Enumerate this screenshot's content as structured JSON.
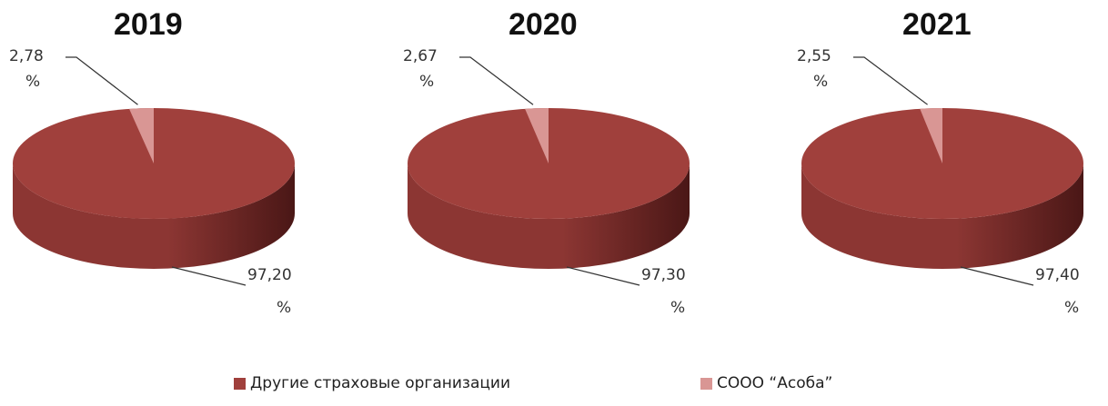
{
  "chart_data": [
    {
      "type": "pie",
      "title": "2019",
      "categories": [
        "Другие страховые организации",
        "СООО \"Асоба\""
      ],
      "values": [
        97.2,
        2.78
      ],
      "data_labels": [
        [
          "97,20",
          "%"
        ],
        [
          "2,78",
          "%"
        ]
      ]
    },
    {
      "type": "pie",
      "title": "2020",
      "categories": [
        "Другие страховые организации",
        "СООО \"Асоба\""
      ],
      "values": [
        97.3,
        2.67
      ],
      "data_labels": [
        [
          "97,30",
          "%"
        ],
        [
          "2,67",
          "%"
        ]
      ]
    },
    {
      "type": "pie",
      "title": "2021",
      "categories": [
        "Другие страховые организации",
        "СООО \"Асоба\""
      ],
      "values": [
        97.4,
        2.55
      ],
      "data_labels": [
        [
          "97,40",
          "%"
        ],
        [
          "2,55",
          "%"
        ]
      ]
    }
  ],
  "legend": {
    "position": "bottom",
    "items": [
      {
        "label": "Другие страховые организации",
        "color": "#A0403C"
      },
      {
        "label": "СООО “Асоба”",
        "color": "#D99694"
      }
    ]
  },
  "colors": {
    "major_top": "#A0403C",
    "major_side_light": "#8C3633",
    "major_side_dark": "#4A1716",
    "minor_top": "#D99694",
    "leader_line": "#333333"
  }
}
